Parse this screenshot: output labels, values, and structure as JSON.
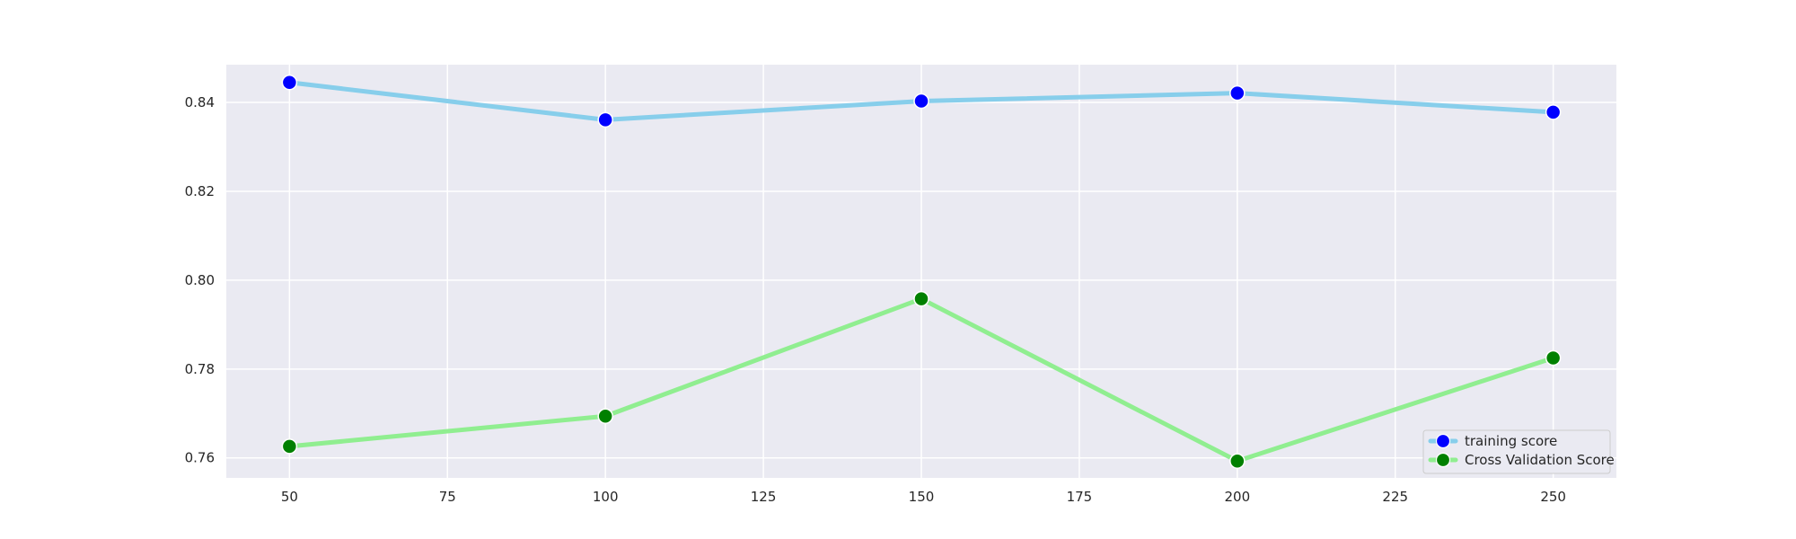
{
  "chart_data": {
    "type": "line",
    "x": [
      50,
      100,
      150,
      200,
      250
    ],
    "xlim": [
      40,
      260
    ],
    "ylim": [
      0.7555,
      0.8485
    ],
    "xticks": [
      50,
      75,
      100,
      125,
      150,
      175,
      200,
      225,
      250
    ],
    "yticks": [
      0.76,
      0.78,
      0.8,
      0.82,
      0.84
    ],
    "ytick_labels": [
      "0.76",
      "0.78",
      "0.80",
      "0.82",
      "0.84"
    ],
    "title": "",
    "xlabel": "",
    "ylabel": "",
    "grid": true,
    "legend_position": "bottom-right",
    "plot_background": "#eaeaf2",
    "series": [
      {
        "name": "training score",
        "values": [
          0.8445,
          0.8361,
          0.8403,
          0.8421,
          0.8378
        ],
        "line_color": "#87ceeb",
        "marker_color": "#0000ff"
      },
      {
        "name": "Cross Validation Score",
        "values": [
          0.7626,
          0.7694,
          0.7958,
          0.7593,
          0.7825
        ],
        "line_color": "#90ee90",
        "marker_color": "#008000"
      }
    ]
  }
}
